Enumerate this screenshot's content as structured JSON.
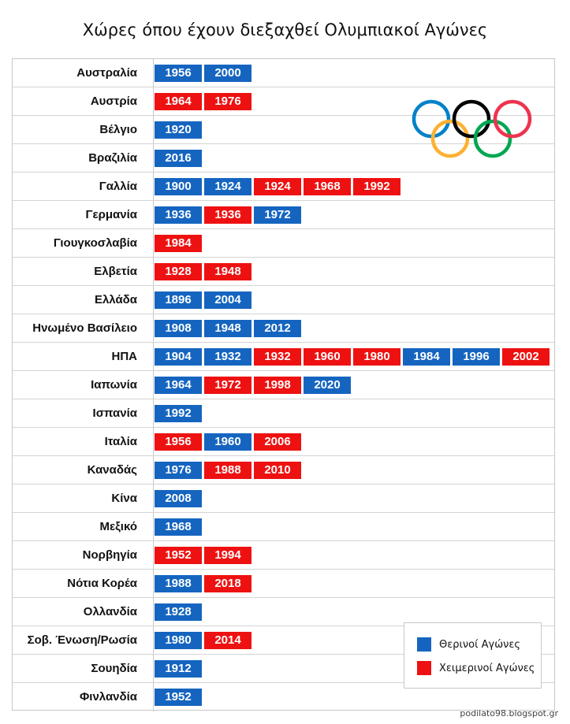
{
  "title": "Χώρες όπου έχουν διεξαχθεί Ολυμπιακοί Αγώνες",
  "legend": {
    "summer_label": "Θερινοί Αγώνες",
    "winter_label": "Χειμερινοί Αγώνες"
  },
  "credit": "podilato98.blogspot.gr",
  "colors": {
    "summer": "#1565c0",
    "winter": "#ee1111",
    "rings": [
      "#0081c8",
      "#fcb131",
      "#000000",
      "#00a651",
      "#ee334e"
    ]
  },
  "chart_data": {
    "type": "table",
    "title": "Χώρες όπου έχουν διεξαχθεί Ολυμπιακοί Αγώνες",
    "series": [
      {
        "name": "Θερινοί Αγώνες",
        "key": "summer"
      },
      {
        "name": "Χειμερινοί Αγώνες",
        "key": "winter"
      }
    ],
    "rows": [
      {
        "country": "Αυστραλία",
        "games": [
          {
            "year": "1956",
            "type": "summer"
          },
          {
            "year": "2000",
            "type": "summer"
          }
        ]
      },
      {
        "country": "Αυστρία",
        "games": [
          {
            "year": "1964",
            "type": "winter"
          },
          {
            "year": "1976",
            "type": "winter"
          }
        ]
      },
      {
        "country": "Βέλγιο",
        "games": [
          {
            "year": "1920",
            "type": "summer"
          }
        ]
      },
      {
        "country": "Βραζιλία",
        "games": [
          {
            "year": "2016",
            "type": "summer"
          }
        ]
      },
      {
        "country": "Γαλλία",
        "games": [
          {
            "year": "1900",
            "type": "summer"
          },
          {
            "year": "1924",
            "type": "summer"
          },
          {
            "year": "1924",
            "type": "winter"
          },
          {
            "year": "1968",
            "type": "winter"
          },
          {
            "year": "1992",
            "type": "winter"
          }
        ]
      },
      {
        "country": "Γερμανία",
        "games": [
          {
            "year": "1936",
            "type": "summer"
          },
          {
            "year": "1936",
            "type": "winter"
          },
          {
            "year": "1972",
            "type": "summer"
          }
        ]
      },
      {
        "country": "Γιουγκοσλαβία",
        "games": [
          {
            "year": "1984",
            "type": "winter"
          }
        ]
      },
      {
        "country": "Ελβετία",
        "games": [
          {
            "year": "1928",
            "type": "winter"
          },
          {
            "year": "1948",
            "type": "winter"
          }
        ]
      },
      {
        "country": "Ελλάδα",
        "games": [
          {
            "year": "1896",
            "type": "summer"
          },
          {
            "year": "2004",
            "type": "summer"
          }
        ]
      },
      {
        "country": "Ηνωμένο Βασίλειο",
        "games": [
          {
            "year": "1908",
            "type": "summer"
          },
          {
            "year": "1948",
            "type": "summer"
          },
          {
            "year": "2012",
            "type": "summer"
          }
        ]
      },
      {
        "country": "ΗΠΑ",
        "games": [
          {
            "year": "1904",
            "type": "summer"
          },
          {
            "year": "1932",
            "type": "summer"
          },
          {
            "year": "1932",
            "type": "winter"
          },
          {
            "year": "1960",
            "type": "winter"
          },
          {
            "year": "1980",
            "type": "winter"
          },
          {
            "year": "1984",
            "type": "summer"
          },
          {
            "year": "1996",
            "type": "summer"
          },
          {
            "year": "2002",
            "type": "winter"
          }
        ]
      },
      {
        "country": "Ιαπωνία",
        "games": [
          {
            "year": "1964",
            "type": "summer"
          },
          {
            "year": "1972",
            "type": "winter"
          },
          {
            "year": "1998",
            "type": "winter"
          },
          {
            "year": "2020",
            "type": "summer"
          }
        ]
      },
      {
        "country": "Ισπανία",
        "games": [
          {
            "year": "1992",
            "type": "summer"
          }
        ]
      },
      {
        "country": "Ιταλία",
        "games": [
          {
            "year": "1956",
            "type": "winter"
          },
          {
            "year": "1960",
            "type": "summer"
          },
          {
            "year": "2006",
            "type": "winter"
          }
        ]
      },
      {
        "country": "Καναδάς",
        "games": [
          {
            "year": "1976",
            "type": "summer"
          },
          {
            "year": "1988",
            "type": "winter"
          },
          {
            "year": "2010",
            "type": "winter"
          }
        ]
      },
      {
        "country": "Κίνα",
        "games": [
          {
            "year": "2008",
            "type": "summer"
          }
        ]
      },
      {
        "country": "Μεξικό",
        "games": [
          {
            "year": "1968",
            "type": "summer"
          }
        ]
      },
      {
        "country": "Νορβηγία",
        "games": [
          {
            "year": "1952",
            "type": "winter"
          },
          {
            "year": "1994",
            "type": "winter"
          }
        ]
      },
      {
        "country": "Νότια Κορέα",
        "games": [
          {
            "year": "1988",
            "type": "summer"
          },
          {
            "year": "2018",
            "type": "winter"
          }
        ]
      },
      {
        "country": "Ολλανδία",
        "games": [
          {
            "year": "1928",
            "type": "summer"
          }
        ]
      },
      {
        "country": "Σοβ. Ένωση/Ρωσία",
        "games": [
          {
            "year": "1980",
            "type": "summer"
          },
          {
            "year": "2014",
            "type": "winter"
          }
        ]
      },
      {
        "country": "Σουηδία",
        "games": [
          {
            "year": "1912",
            "type": "summer"
          }
        ]
      },
      {
        "country": "Φινλανδία",
        "games": [
          {
            "year": "1952",
            "type": "summer"
          }
        ]
      }
    ]
  }
}
